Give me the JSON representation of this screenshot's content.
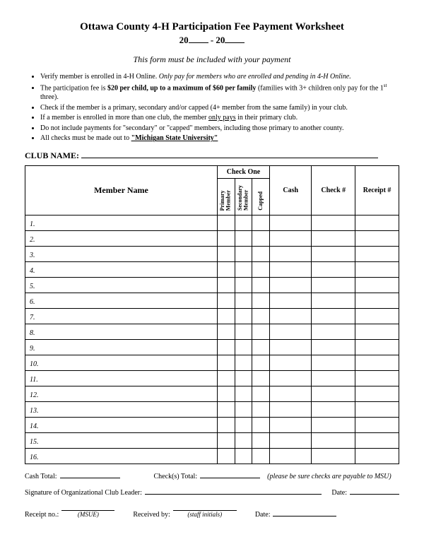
{
  "title": "Ottawa County 4-H Participation Fee Payment Worksheet",
  "year_prefix": "20",
  "year_sep": " - ",
  "note": "This form must be included with your payment",
  "bullets": {
    "b1a": "Verify member is enrolled in 4-H Online. ",
    "b1b": "Only pay for members who are enrolled and pending in 4-H Online.",
    "b2a": "The participation fee is ",
    "b2b": "$20 per child, up to a maximum of $60 per family",
    "b2c": " (families with 3+ children only pay for the 1",
    "b2d": "st",
    "b2e": " three).",
    "b3": "Check if the member is a primary, secondary and/or capped (4+ member from the same family) in your club.",
    "b4a": "If a member is enrolled in more than one club, the member ",
    "b4b": "only pays",
    "b4c": " in their primary club.",
    "b5": "Do not include payments for \"secondary\" or \"capped\" members, including those primary to another county.",
    "b6a": "All checks must be made out to ",
    "b6b": "\"Michigan State University\""
  },
  "club_label": "CLUB NAME:",
  "headers": {
    "member": "Member Name",
    "checkone": "Check One",
    "primary": "Primary\nMember",
    "secondary": "Secondary\nMember",
    "capped": "Capped",
    "cash": "Cash",
    "check": "Check #",
    "receipt": "Receipt #"
  },
  "rows": [
    "1.",
    "2.",
    "3.",
    "4.",
    "5.",
    "6.",
    "7.",
    "8.",
    "9.",
    "10.",
    "11.",
    "12.",
    "13.",
    "14.",
    "15.",
    "16."
  ],
  "footer": {
    "cash_total": "Cash Total:",
    "checks_total": "Check(s) Total:",
    "payable_note": "(please be sure checks are payable to MSU)",
    "sig": "Signature of Organizational Club Leader:",
    "date": "Date:",
    "receipt_no": "Receipt no.:",
    "msue": "(MSUE)",
    "received_by": "Received by:",
    "staff_initials": "(staff initials)"
  }
}
